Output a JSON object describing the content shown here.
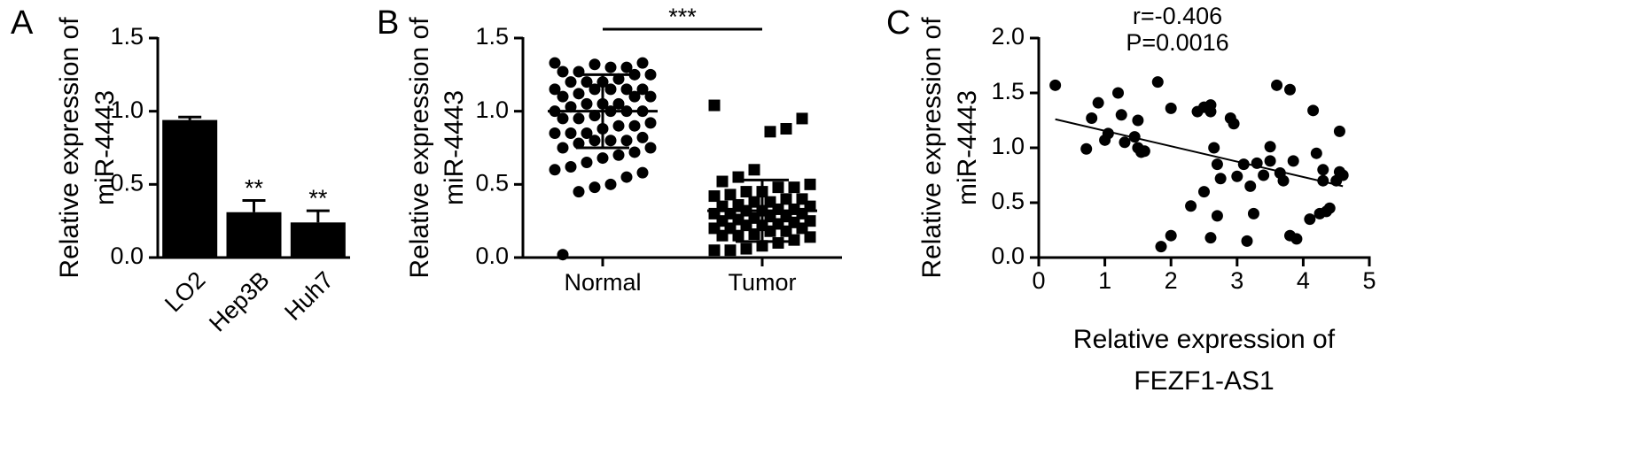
{
  "chart_data": [
    {
      "type": "bar",
      "panel": "A",
      "ylabel": [
        "Relative expression of",
        "miR-4443"
      ],
      "categories": [
        "LO2",
        "Hep3B",
        "Huh7"
      ],
      "values": [
        0.94,
        0.31,
        0.24
      ],
      "errors": [
        0.02,
        0.08,
        0.08
      ],
      "significance": [
        null,
        "**",
        "**"
      ],
      "color": "#000000",
      "ylim": [
        0,
        1.5
      ],
      "yticks": [
        {
          "value": 0,
          "label": "0.0"
        },
        0.5,
        {
          "value": 1,
          "label": "1.0"
        },
        1.5
      ]
    },
    {
      "type": "strip",
      "panel": "B",
      "ylabel": [
        "Relative expression of",
        "miR-4443"
      ],
      "comparison": "***",
      "series": [
        {
          "name": "Normal",
          "marker": "circle",
          "color": "#000000",
          "mean": 1.0,
          "sd": 0.25,
          "values": [
            1.33,
            1.33,
            1.3,
            1.3,
            1.32,
            1.27,
            1.27,
            1.25,
            1.25,
            1.22,
            1.2,
            1.2,
            1.2,
            1.15,
            1.15,
            1.15,
            1.15,
            1.15,
            1.12,
            1.1,
            1.1,
            1.1,
            1.05,
            1.05,
            1.05,
            1.03,
            1.0,
            1.0,
            1.0,
            1.0,
            0.97,
            0.95,
            0.95,
            0.92,
            0.9,
            0.9,
            0.88,
            0.85,
            0.85,
            0.85,
            0.82,
            0.8,
            0.8,
            0.8,
            0.78,
            0.75,
            0.75,
            0.72,
            0.7,
            0.68,
            0.65,
            0.62,
            0.6,
            0.58,
            0.55,
            0.5,
            0.48,
            0.45,
            0.02
          ]
        },
        {
          "name": "Tumor",
          "marker": "square",
          "color": "#000000",
          "mean": 0.32,
          "sd": 0.21,
          "values": [
            1.04,
            0.95,
            0.88,
            0.86,
            0.6,
            0.55,
            0.52,
            0.5,
            0.48,
            0.48,
            0.45,
            0.45,
            0.43,
            0.42,
            0.4,
            0.4,
            0.38,
            0.38,
            0.36,
            0.35,
            0.35,
            0.33,
            0.33,
            0.32,
            0.32,
            0.3,
            0.3,
            0.3,
            0.28,
            0.28,
            0.27,
            0.26,
            0.25,
            0.25,
            0.24,
            0.23,
            0.22,
            0.22,
            0.2,
            0.2,
            0.2,
            0.18,
            0.18,
            0.16,
            0.15,
            0.15,
            0.14,
            0.12,
            0.1,
            0.08,
            0.06,
            0.05,
            0.05
          ]
        }
      ],
      "ylim": [
        0,
        1.5
      ],
      "yticks": [
        {
          "value": 0,
          "label": "0.0"
        },
        0.5,
        {
          "value": 1,
          "label": "1.0"
        },
        1.5
      ]
    },
    {
      "type": "scatter",
      "panel": "C",
      "annotations": [
        "r=-0.406",
        "P=0.0016"
      ],
      "xlabel": [
        "Relative expression of",
        "FEZF1-AS1"
      ],
      "ylabel": [
        "Relative expression of",
        "miR-4443"
      ],
      "color": "#000000",
      "x": [
        0.25,
        0.72,
        0.8,
        0.9,
        1.0,
        1.05,
        1.2,
        1.25,
        1.3,
        1.45,
        1.5,
        1.5,
        1.55,
        1.6,
        1.8,
        1.85,
        2.0,
        2.0,
        2.3,
        2.4,
        2.5,
        2.5,
        2.6,
        2.6,
        2.6,
        2.65,
        2.7,
        2.7,
        2.75,
        2.9,
        2.95,
        3.0,
        3.1,
        3.15,
        3.2,
        3.25,
        3.3,
        3.4,
        3.5,
        3.5,
        3.6,
        3.65,
        3.7,
        3.8,
        3.8,
        3.85,
        3.9,
        4.1,
        4.15,
        4.2,
        4.25,
        4.3,
        4.35,
        4.4,
        4.5,
        4.55,
        4.6,
        4.55,
        4.3
      ],
      "y": [
        1.57,
        0.99,
        1.27,
        1.41,
        1.07,
        1.13,
        1.5,
        1.3,
        1.05,
        1.1,
        1.25,
        1.0,
        0.96,
        0.97,
        1.6,
        0.1,
        1.36,
        0.2,
        0.47,
        1.33,
        0.6,
        1.37,
        1.39,
        1.33,
        0.18,
        1.0,
        0.85,
        0.38,
        0.72,
        1.27,
        1.22,
        0.74,
        0.85,
        0.15,
        0.65,
        0.4,
        0.86,
        0.75,
        1.01,
        0.88,
        1.57,
        0.77,
        0.7,
        1.53,
        0.2,
        0.88,
        0.17,
        0.35,
        1.34,
        0.95,
        0.4,
        0.8,
        0.42,
        0.45,
        0.7,
        1.15,
        0.75,
        0.78,
        0.7
      ],
      "fit": {
        "x": [
          0.25,
          4.6
        ],
        "y": [
          1.26,
          0.65
        ]
      },
      "xlim": [
        0,
        5
      ],
      "xticks": [
        0,
        1,
        2,
        3,
        4,
        5
      ],
      "ylim": [
        0,
        2
      ],
      "yticks": [
        {
          "value": 0,
          "label": "0.0"
        },
        0.5,
        {
          "value": 1,
          "label": "1.0"
        },
        1.5,
        {
          "value": 2,
          "label": "2.0"
        }
      ]
    }
  ]
}
